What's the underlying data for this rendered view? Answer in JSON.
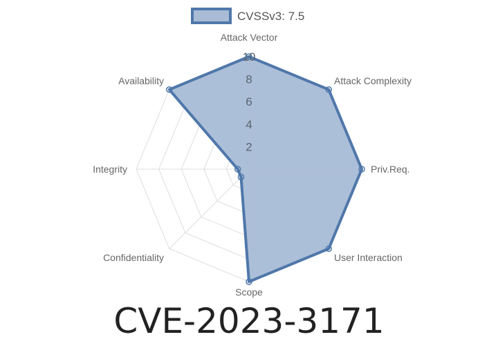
{
  "chart_data": {
    "type": "radar",
    "title": "CVE-2023-3171",
    "categories": [
      "Attack Vector",
      "Attack Complexity",
      "Priv.Req.",
      "User Interaction",
      "Scope",
      "Confidentiality",
      "Integrity",
      "Availability"
    ],
    "series": [
      {
        "name": "CVSSv3: 7.5",
        "values": [
          10,
          10,
          10,
          10,
          10,
          1,
          1,
          10
        ]
      }
    ],
    "rlim": [
      0,
      10
    ],
    "ticks": [
      "2",
      "4",
      "6",
      "8",
      "10"
    ],
    "tick_values": [
      2,
      4,
      6,
      8,
      10
    ],
    "grid": true,
    "legend": "top",
    "colors": {
      "fill": "#a8bcd6",
      "stroke": "#4f77aa",
      "grid": "#dddddd",
      "text": "#666666"
    }
  }
}
